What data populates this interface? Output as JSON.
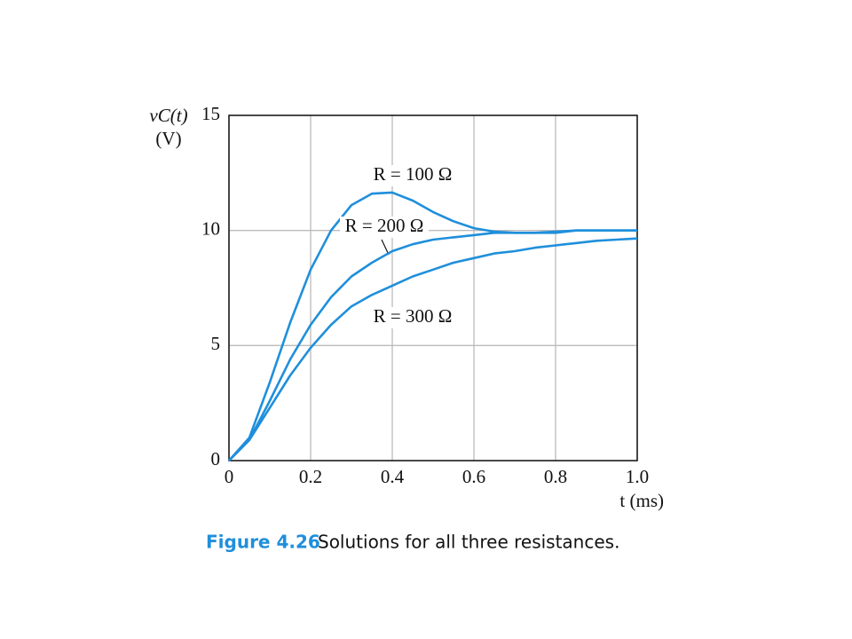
{
  "chart_data": {
    "type": "line",
    "y_label": [
      "vC(t)",
      "(V)"
    ],
    "x_label": "t (ms)",
    "caption_label": "Figure 4.26",
    "caption_text": "Solutions for all three resistances.",
    "x": [
      0,
      0.05,
      0.1,
      0.15,
      0.2,
      0.25,
      0.3,
      0.35,
      0.4,
      0.45,
      0.5,
      0.55,
      0.6,
      0.65,
      0.7,
      0.75,
      0.8,
      0.85,
      0.9,
      0.95,
      1.0
    ],
    "series": [
      {
        "name": "R = 100 Ω",
        "color": "#1f8fdb",
        "values": [
          0,
          1.0,
          3.4,
          6.0,
          8.3,
          10.0,
          11.1,
          11.6,
          11.65,
          11.3,
          10.8,
          10.4,
          10.1,
          9.95,
          9.9,
          9.9,
          9.95,
          10.0,
          10.0,
          10.0,
          10.0
        ]
      },
      {
        "name": "R = 200 Ω",
        "color": "#1f8fdb",
        "values": [
          0,
          0.9,
          2.6,
          4.4,
          5.9,
          7.1,
          8.0,
          8.6,
          9.1,
          9.4,
          9.6,
          9.7,
          9.8,
          9.9,
          9.9,
          9.9,
          9.9,
          10.0,
          10.0,
          10.0,
          10.0
        ]
      },
      {
        "name": "R = 300 Ω",
        "color": "#1f8fdb",
        "values": [
          0,
          0.9,
          2.3,
          3.7,
          4.9,
          5.9,
          6.7,
          7.2,
          7.6,
          8.0,
          8.3,
          8.6,
          8.8,
          9.0,
          9.1,
          9.25,
          9.35,
          9.45,
          9.55,
          9.6,
          9.65
        ]
      }
    ],
    "xlim": [
      0,
      1
    ],
    "xticks": [
      0,
      0.2,
      0.4,
      0.6,
      0.8,
      {
        "value": 1,
        "label": "1.0"
      }
    ],
    "ylim": [
      0,
      15
    ],
    "yticks": [
      0,
      5,
      10,
      15
    ],
    "grid": true
  }
}
